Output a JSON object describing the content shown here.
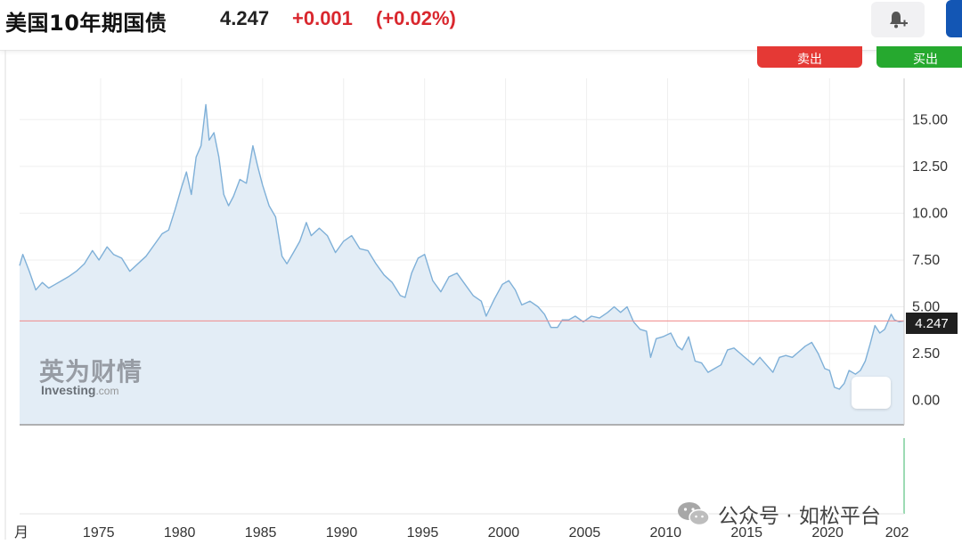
{
  "header": {
    "title": "美国10年期国债",
    "price": "4.247",
    "change": "+0.001",
    "change_pct": "(+0.02%)",
    "alert_icon": "bell-plus-icon",
    "sell_label": "卖出",
    "buy_label": "买出"
  },
  "colors": {
    "line": "#7fb0d8",
    "area": "#e3edf6",
    "down": "#d9272e",
    "sell": "#e53935",
    "buy": "#26a92f",
    "price_line": "#f08a8a"
  },
  "chart_data": {
    "type": "area",
    "title": "",
    "xlabel": "",
    "ylabel": "",
    "y_ticks": [
      "15.00",
      "12.50",
      "10.00",
      "7.50",
      "5.00",
      "2.50",
      "0.00"
    ],
    "x_ticks": [
      "月",
      "1975",
      "1980",
      "1985",
      "1990",
      "1995",
      "2000",
      "2005",
      "2010",
      "2015",
      "2020",
      "202"
    ],
    "ylim": [
      -1.3,
      17.2
    ],
    "xlim": [
      1970.0,
      2024.6
    ],
    "current_value": "4.247",
    "grid": true,
    "legend": "none",
    "x": [
      1970.0,
      1970.2,
      1970.6,
      1971.0,
      1971.4,
      1971.8,
      1972.2,
      1972.6,
      1973.0,
      1973.5,
      1974.0,
      1974.5,
      1974.9,
      1975.4,
      1975.8,
      1976.3,
      1976.8,
      1977.3,
      1977.8,
      1978.3,
      1978.8,
      1979.2,
      1979.6,
      1980.0,
      1980.3,
      1980.6,
      1980.9,
      1981.2,
      1981.5,
      1981.7,
      1982.0,
      1982.3,
      1982.6,
      1982.9,
      1983.2,
      1983.6,
      1984.0,
      1984.4,
      1984.7,
      1985.0,
      1985.4,
      1985.8,
      1986.2,
      1986.5,
      1986.9,
      1987.3,
      1987.7,
      1988.0,
      1988.5,
      1989.0,
      1989.5,
      1990.0,
      1990.5,
      1991.0,
      1991.5,
      1992.0,
      1992.5,
      1993.0,
      1993.5,
      1993.8,
      1994.2,
      1994.6,
      1995.0,
      1995.5,
      1996.0,
      1996.5,
      1997.0,
      1997.5,
      1998.0,
      1998.5,
      1998.8,
      1999.3,
      1999.8,
      2000.2,
      2000.6,
      2001.0,
      2001.5,
      2002.0,
      2002.4,
      2002.8,
      2003.2,
      2003.5,
      2003.9,
      2004.3,
      2004.8,
      2005.3,
      2005.8,
      2006.3,
      2006.7,
      2007.1,
      2007.5,
      2007.9,
      2008.3,
      2008.7,
      2008.95,
      2009.3,
      2009.7,
      2010.2,
      2010.6,
      2010.9,
      2011.3,
      2011.7,
      2012.1,
      2012.5,
      2012.9,
      2013.3,
      2013.7,
      2014.1,
      2014.5,
      2014.9,
      2015.3,
      2015.7,
      2016.1,
      2016.5,
      2016.9,
      2017.3,
      2017.7,
      2018.1,
      2018.5,
      2018.9,
      2019.3,
      2019.7,
      2020.0,
      2020.3,
      2020.6,
      2020.9,
      2021.2,
      2021.6,
      2021.9,
      2022.2,
      2022.5,
      2022.8,
      2023.1,
      2023.4,
      2023.8,
      2024.0,
      2024.3,
      2024.6
    ],
    "values": [
      7.2,
      7.8,
      6.9,
      5.9,
      6.3,
      6.0,
      6.2,
      6.4,
      6.6,
      6.9,
      7.3,
      8.0,
      7.5,
      8.2,
      7.8,
      7.6,
      6.9,
      7.3,
      7.7,
      8.3,
      8.9,
      9.1,
      10.2,
      11.4,
      12.2,
      11.0,
      13.0,
      13.6,
      15.8,
      13.9,
      14.3,
      13.0,
      11.0,
      10.4,
      10.9,
      11.8,
      11.6,
      13.6,
      12.5,
      11.5,
      10.4,
      9.8,
      7.7,
      7.3,
      7.9,
      8.5,
      9.5,
      8.8,
      9.2,
      8.8,
      7.9,
      8.5,
      8.8,
      8.1,
      8.0,
      7.3,
      6.7,
      6.3,
      5.6,
      5.5,
      6.8,
      7.6,
      7.8,
      6.4,
      5.8,
      6.6,
      6.8,
      6.2,
      5.6,
      5.3,
      4.5,
      5.4,
      6.2,
      6.4,
      5.9,
      5.1,
      5.3,
      5.0,
      4.6,
      3.9,
      3.9,
      4.3,
      4.3,
      4.5,
      4.2,
      4.5,
      4.4,
      4.7,
      5.0,
      4.7,
      5.0,
      4.2,
      3.8,
      3.7,
      2.3,
      3.3,
      3.4,
      3.6,
      2.9,
      2.7,
      3.4,
      2.1,
      2.0,
      1.5,
      1.7,
      1.9,
      2.7,
      2.8,
      2.5,
      2.2,
      1.9,
      2.3,
      1.9,
      1.5,
      2.3,
      2.4,
      2.3,
      2.6,
      2.9,
      3.1,
      2.5,
      1.7,
      1.6,
      0.7,
      0.6,
      0.9,
      1.6,
      1.4,
      1.6,
      2.1,
      3.0,
      4.0,
      3.6,
      3.8,
      4.6,
      4.3,
      4.2,
      4.25
    ]
  },
  "watermark": {
    "logo_cn": "英为财情",
    "logo_en": "Investing",
    "logo_suffix": ".com",
    "wechat_icon": "wechat-icon",
    "wechat_text": "公众号 · 如松平台"
  }
}
